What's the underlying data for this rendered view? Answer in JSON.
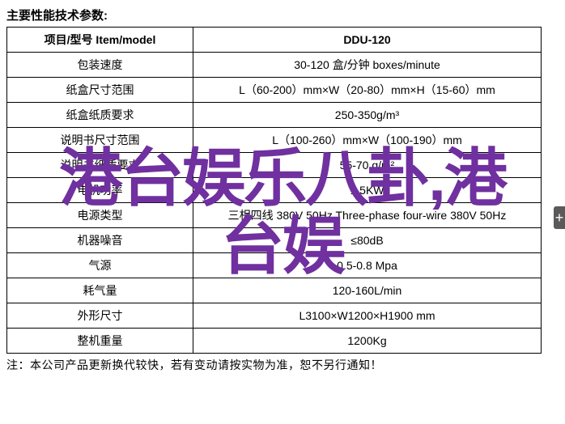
{
  "title": "主要性能技术参数:",
  "header": {
    "col1": "项目/型号 Item/model",
    "col2": "DDU-120"
  },
  "rows": [
    {
      "label": "包装速度",
      "value": "30-120 盒/分钟 boxes/minute"
    },
    {
      "label": "纸盒尺寸范围",
      "value": "L（60-200）mm×W（20-80）mm×H（15-60）mm"
    },
    {
      "label": "纸盒纸质要求",
      "value": "250-350g/m³"
    },
    {
      "label": "说明书尺寸范围",
      "value": "L（100-260）mm×W（100-190）mm"
    },
    {
      "label": "说明书纸质要求",
      "value": "55-70 g/m²"
    },
    {
      "label": "电机功率",
      "value": "1.5KW"
    },
    {
      "label": "电源类型",
      "value": "三相四线 380V 50Hz Three-phase four-wire 380V 50Hz"
    },
    {
      "label": "机器噪音",
      "value": "≤80dB"
    },
    {
      "label": "气源",
      "value": "0.5-0.8 Mpa"
    },
    {
      "label": "耗气量",
      "value": "120-160L/min"
    },
    {
      "label": "外形尺寸",
      "value": "L3100×W1200×H1900 mm"
    },
    {
      "label": "整机重量",
      "value": "1200Kg"
    }
  ],
  "footnote": "注：本公司产品更新换代较快，若有变动请按实物为准，恕不另行通知！",
  "overlay": {
    "line1": "港台娱乐八卦,港",
    "line2": "台娱",
    "color": "#7030a0"
  },
  "side_tab": "+"
}
